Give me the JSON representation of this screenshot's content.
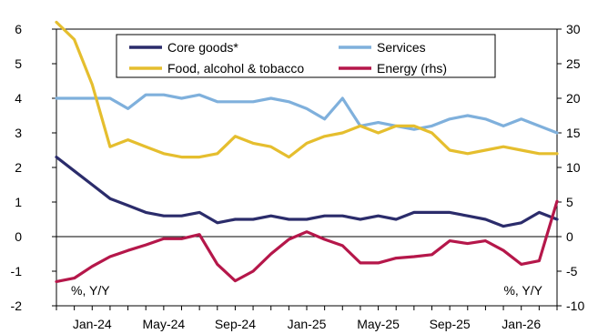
{
  "chart_data": {
    "type": "line",
    "x": [
      "Nov-23",
      "Dec-23",
      "Jan-24",
      "Feb-24",
      "Mar-24",
      "Apr-24",
      "May-24",
      "Jun-24",
      "Jul-24",
      "Aug-24",
      "Sep-24",
      "Oct-24",
      "Nov-24",
      "Dec-24",
      "Jan-25",
      "Feb-25",
      "Mar-25",
      "Apr-25",
      "May-25",
      "Jun-25",
      "Jul-25",
      "Aug-25",
      "Sep-25",
      "Oct-25",
      "Nov-25",
      "Dec-25",
      "Jan-26",
      "Feb-26",
      "Mar-26"
    ],
    "x_tick_labels": [
      "Jan-24",
      "May-24",
      "Sep-24",
      "Jan-25",
      "May-25",
      "Sep-25",
      "Jan-26"
    ],
    "left_axis": {
      "ylim": [
        -2,
        6
      ],
      "ticks": [
        "-2",
        "-1",
        "0",
        "1",
        "2",
        "3",
        "4",
        "5",
        "6"
      ],
      "unit_label": "%, Y/Y"
    },
    "right_axis": {
      "ylim": [
        -10,
        30
      ],
      "ticks": [
        "-10",
        "-5",
        "0",
        "5",
        "10",
        "15",
        "20",
        "25",
        "30"
      ],
      "unit_label": "%, Y/Y"
    },
    "series": [
      {
        "name": "Core goods*",
        "color": "#2b2c6b",
        "axis": "left",
        "values": [
          2.3,
          1.9,
          1.5,
          1.1,
          0.9,
          0.7,
          0.6,
          0.6,
          0.7,
          0.4,
          0.5,
          0.5,
          0.6,
          0.5,
          0.5,
          0.6,
          0.6,
          0.5,
          0.6,
          0.5,
          0.7,
          0.7,
          0.7,
          0.6,
          0.5,
          0.3,
          0.4,
          0.7,
          0.5
        ]
      },
      {
        "name": "Services",
        "color": "#7fb0dc",
        "axis": "left",
        "values": [
          4.0,
          4.0,
          4.0,
          4.0,
          3.7,
          4.1,
          4.1,
          4.0,
          4.1,
          3.9,
          3.9,
          3.9,
          4.0,
          3.9,
          3.7,
          3.4,
          4.0,
          3.2,
          3.3,
          3.2,
          3.1,
          3.2,
          3.4,
          3.5,
          3.4,
          3.2,
          3.4,
          3.2,
          3.0
        ]
      },
      {
        "name": "Food, alcohol & tobacco",
        "color": "#e5be2e",
        "axis": "left",
        "values": [
          6.2,
          5.7,
          4.4,
          2.6,
          2.8,
          2.6,
          2.4,
          2.3,
          2.3,
          2.4,
          2.9,
          2.7,
          2.6,
          2.3,
          2.7,
          2.9,
          3.0,
          3.2,
          3.0,
          3.2,
          3.2,
          3.0,
          2.5,
          2.4,
          2.5,
          2.6,
          2.5,
          2.4,
          2.4
        ]
      },
      {
        "name": "Energy (rhs)",
        "color": "#b5174a",
        "axis": "right",
        "values": [
          -6.5,
          -6.0,
          -4.3,
          -2.9,
          -2.0,
          -1.2,
          -0.3,
          -0.3,
          0.3,
          -4.0,
          -6.4,
          -5.0,
          -2.5,
          -0.4,
          0.7,
          -0.4,
          -1.3,
          -3.8,
          -3.8,
          -3.1,
          -2.9,
          -2.6,
          -0.6,
          -1.0,
          -0.6,
          -2.0,
          -4.0,
          -3.5,
          5.1
        ]
      }
    ],
    "legend_position": "top",
    "grid": false
  }
}
